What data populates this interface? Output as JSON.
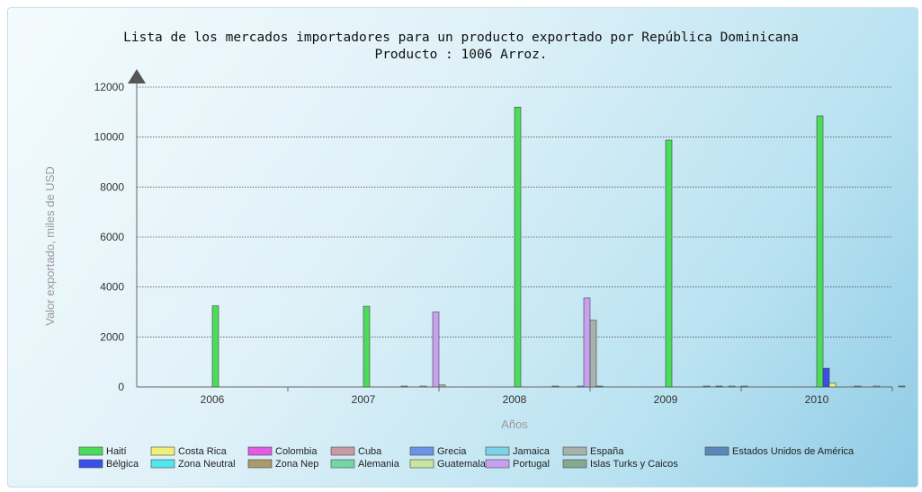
{
  "chart_data": {
    "type": "bar",
    "title_line1": "Lista de los mercados importadores para un producto exportado por República Dominicana",
    "title_line2": "Producto : 1006 Arroz.",
    "xlabel": "Años",
    "ylabel": "Valor exportado, miles de USD",
    "ylim": [
      0,
      12000
    ],
    "yticks": [
      0,
      2000,
      4000,
      6000,
      8000,
      10000,
      12000
    ],
    "grid": true,
    "legend_position": "bottom",
    "categories": [
      "2006",
      "2007",
      "2008",
      "2009",
      "2010"
    ],
    "series": [
      {
        "name": "Haití",
        "color": "#4cdc5c",
        "values": [
          3250,
          3230,
          11200,
          9880,
          10850
        ]
      },
      {
        "name": "Bélgica",
        "color": "#3a4fe6",
        "values": [
          0,
          0,
          0,
          0,
          750
        ]
      },
      {
        "name": "Costa Rica",
        "color": "#eef07a",
        "values": [
          0,
          0,
          0,
          0,
          150
        ]
      },
      {
        "name": "Zona Neutral",
        "color": "#52e6ee",
        "values": [
          0,
          0,
          0,
          0,
          0
        ]
      },
      {
        "name": "Colombia",
        "color": "#e25ae6",
        "values": [
          0,
          0,
          0,
          0,
          0
        ]
      },
      {
        "name": "Zona Nep",
        "color": "#a89b6c",
        "values": [
          0,
          0,
          0,
          0,
          0
        ]
      },
      {
        "name": "Cuba",
        "color": "#c79aa6",
        "values": [
          0,
          20,
          20,
          20,
          30
        ]
      },
      {
        "name": "Alemania",
        "color": "#74d6a4",
        "values": [
          0,
          0,
          0,
          0,
          0
        ]
      },
      {
        "name": "Grecia",
        "color": "#6a94e6",
        "values": [
          0,
          0,
          0,
          20,
          0
        ]
      },
      {
        "name": "Guatemala",
        "color": "#c8e6a0",
        "values": [
          0,
          20,
          0,
          0,
          20
        ]
      },
      {
        "name": "Jamaica",
        "color": "#7cd4e6",
        "values": [
          0,
          0,
          30,
          20,
          0
        ]
      },
      {
        "name": "Portugal",
        "color": "#c7a0f0",
        "values": [
          0,
          3000,
          3560,
          0,
          0
        ]
      },
      {
        "name": "España",
        "color": "#a8b2ac",
        "values": [
          0,
          80,
          2670,
          20,
          0
        ]
      },
      {
        "name": "Islas Turks y Caicos",
        "color": "#86a890",
        "values": [
          0,
          0,
          20,
          0,
          20
        ]
      },
      {
        "name": "Estados Unidos de América",
        "color": "#5b88b8",
        "values": [
          0,
          0,
          0,
          0,
          0
        ]
      }
    ]
  }
}
